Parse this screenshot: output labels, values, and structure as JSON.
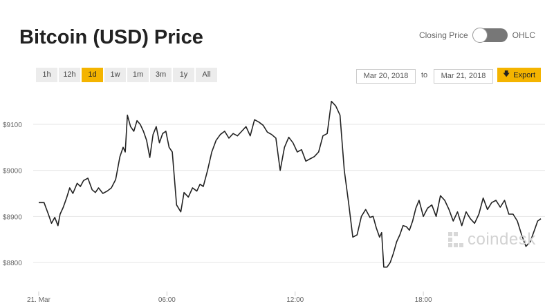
{
  "header": {
    "title": "Bitcoin (USD) Price",
    "toggle_left_label": "Closing Price",
    "toggle_right_label": "OHLC"
  },
  "range_buttons": [
    "1h",
    "12h",
    "1d",
    "1w",
    "1m",
    "3m",
    "1y",
    "All"
  ],
  "active_range": "1d",
  "date_range": {
    "from": "Mar 20, 2018",
    "to_label": "to",
    "to": "Mar 21, 2018"
  },
  "export_label": "Export",
  "watermark": "coindesk",
  "colors": {
    "accent": "#f4b400",
    "line": "#222222",
    "grid": "#e6e6e6"
  },
  "chart_data": {
    "type": "line",
    "title": "",
    "xlabel": "",
    "ylabel": "",
    "x_ticks": [
      "21. Mar",
      "06:00",
      "12:00",
      "18:00"
    ],
    "y_ticks": [
      "$8800",
      "$8900",
      "$9000",
      "$9100"
    ],
    "ylim": [
      8740,
      9175
    ],
    "x_range_hours": [
      0,
      23.5
    ],
    "grid": "horizontal",
    "series": [
      {
        "x": [
          0,
          0.25,
          0.45,
          0.6,
          0.75,
          0.9,
          1.0,
          1.15,
          1.3,
          1.45,
          1.6,
          1.8,
          1.95,
          2.1,
          2.3,
          2.5,
          2.65,
          2.8,
          3.0,
          3.2,
          3.4,
          3.6,
          3.8,
          3.95,
          4.05,
          4.15,
          4.3,
          4.45,
          4.6,
          4.75,
          4.9,
          5.05,
          5.2,
          5.35,
          5.5,
          5.65,
          5.8,
          5.95,
          6.1,
          6.25,
          6.45,
          6.65,
          6.8,
          7.0,
          7.2,
          7.4,
          7.55,
          7.7,
          7.9,
          8.1,
          8.3,
          8.5,
          8.7,
          8.9,
          9.1,
          9.3,
          9.5,
          9.7,
          9.9,
          10.1,
          10.3,
          10.5,
          10.7,
          10.9,
          11.1,
          11.3,
          11.5,
          11.7,
          11.9,
          12.1,
          12.3,
          12.5,
          12.7,
          12.9,
          13.1,
          13.3,
          13.5,
          13.7,
          13.9,
          14.1,
          14.3,
          14.5,
          14.7,
          14.9,
          15.1,
          15.3,
          15.5,
          15.65,
          15.8,
          15.95,
          16.05,
          16.15,
          16.3,
          16.45,
          16.6,
          16.75,
          16.9,
          17.05,
          17.2,
          17.35,
          17.5,
          17.65,
          17.8,
          18.0,
          18.2,
          18.4,
          18.6,
          18.8,
          19.0,
          19.2,
          19.4,
          19.6,
          19.8,
          20.0,
          20.2,
          20.4,
          20.6,
          20.8,
          21.0,
          21.2,
          21.4,
          21.6,
          21.8,
          22.0,
          22.2,
          22.4,
          22.6,
          22.8,
          23.0,
          23.2,
          23.35,
          23.5
        ],
        "y": [
          8930,
          8930,
          8905,
          8885,
          8898,
          8880,
          8905,
          8920,
          8940,
          8962,
          8950,
          8972,
          8965,
          8978,
          8983,
          8958,
          8952,
          8962,
          8950,
          8955,
          8962,
          8980,
          9030,
          9050,
          9040,
          9120,
          9095,
          9085,
          9108,
          9100,
          9085,
          9065,
          9028,
          9078,
          9095,
          9060,
          9080,
          9085,
          9050,
          9040,
          8925,
          8910,
          8952,
          8942,
          8962,
          8955,
          8970,
          8965,
          9000,
          9040,
          9065,
          9078,
          9085,
          9070,
          9080,
          9075,
          9085,
          9095,
          9075,
          9110,
          9105,
          9098,
          9083,
          9078,
          9070,
          9000,
          9050,
          9072,
          9060,
          9040,
          9045,
          9020,
          9025,
          9030,
          9040,
          9075,
          9080,
          9150,
          9140,
          9120,
          9000,
          8930,
          8855,
          8860,
          8900,
          8915,
          8898,
          8900,
          8875,
          8855,
          8865,
          8790,
          8790,
          8800,
          8820,
          8845,
          8860,
          8880,
          8878,
          8870,
          8890,
          8918,
          8935,
          8900,
          8918,
          8925,
          8900,
          8945,
          8935,
          8915,
          8890,
          8910,
          8880,
          8910,
          8895,
          8885,
          8905,
          8940,
          8915,
          8930,
          8935,
          8920,
          8935,
          8905,
          8905,
          8890,
          8860,
          8835,
          8845,
          8870,
          8890,
          8895
        ]
      }
    ]
  }
}
